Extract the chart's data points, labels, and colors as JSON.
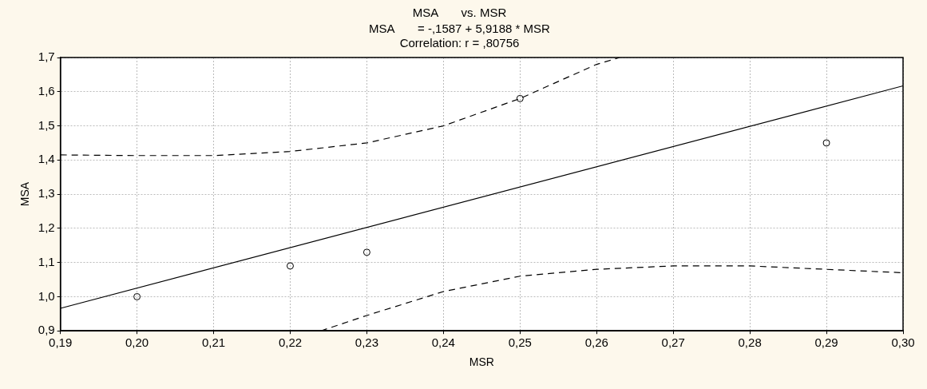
{
  "chart_data": {
    "type": "scatter",
    "title": "MSA       vs. MSR",
    "subtitle": "MSA       = -,1587 + 5,9188 * MSR",
    "annotations": [
      "Correlation: r = ,80756"
    ],
    "xlabel": "MSR",
    "ylabel": "MSA",
    "xlim": [
      0.19,
      0.3
    ],
    "xticks": [
      {
        "value": 0.19,
        "label": "0,19"
      },
      {
        "value": 0.2,
        "label": "0,20"
      },
      {
        "value": 0.21,
        "label": "0,21"
      },
      {
        "value": 0.22,
        "label": "0,22"
      },
      {
        "value": 0.23,
        "label": "0,23"
      },
      {
        "value": 0.24,
        "label": "0,24"
      },
      {
        "value": 0.25,
        "label": "0,25"
      },
      {
        "value": 0.26,
        "label": "0,26"
      },
      {
        "value": 0.27,
        "label": "0,27"
      },
      {
        "value": 0.28,
        "label": "0,28"
      },
      {
        "value": 0.29,
        "label": "0,29"
      },
      {
        "value": 0.3,
        "label": "0,30"
      }
    ],
    "ylim": [
      0.9,
      1.7
    ],
    "yticks": [
      {
        "value": 0.9,
        "label": "0,9"
      },
      {
        "value": 1.0,
        "label": "1,0"
      },
      {
        "value": 1.1,
        "label": "1,1"
      },
      {
        "value": 1.2,
        "label": "1,2"
      },
      {
        "value": 1.3,
        "label": "1,3"
      },
      {
        "value": 1.4,
        "label": "1,4"
      },
      {
        "value": 1.5,
        "label": "1,5"
      },
      {
        "value": 1.6,
        "label": "1,6"
      },
      {
        "value": 1.7,
        "label": "1,7"
      }
    ],
    "grid": true,
    "series": [
      {
        "type": "scatter",
        "color": "#000000",
        "marker": "circle",
        "x": [
          0.2,
          0.22,
          0.23,
          0.25,
          0.29
        ],
        "values": [
          1.0,
          1.09,
          1.13,
          1.58,
          1.45
        ]
      },
      {
        "type": "line",
        "color": "#000000",
        "line_style": "solid",
        "marker": "none",
        "x": [
          0.19,
          0.3
        ],
        "values": [
          0.966,
          1.617
        ]
      },
      {
        "type": "line",
        "color": "#000000",
        "line_style": "dashed",
        "marker": "none",
        "x": [
          0.19,
          0.2,
          0.21,
          0.22,
          0.23,
          0.24,
          0.25,
          0.26,
          0.263
        ],
        "values": [
          1.415,
          1.413,
          1.413,
          1.425,
          1.45,
          1.5,
          1.58,
          1.68,
          1.7
        ]
      },
      {
        "type": "line",
        "color": "#000000",
        "line_style": "dashed",
        "marker": "none",
        "x": [
          0.224,
          0.23,
          0.24,
          0.25,
          0.26,
          0.27,
          0.28,
          0.29,
          0.3
        ],
        "values": [
          0.9,
          0.945,
          1.015,
          1.06,
          1.08,
          1.09,
          1.09,
          1.08,
          1.07
        ]
      }
    ]
  }
}
